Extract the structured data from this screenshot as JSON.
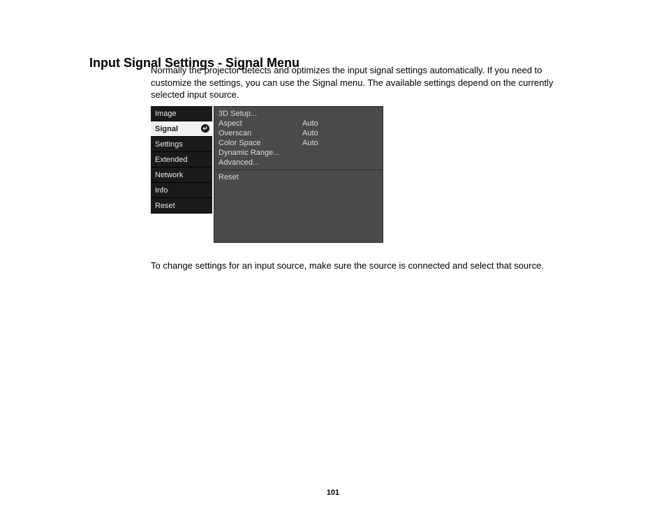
{
  "heading": "Input Signal Settings - Signal Menu",
  "intro": "Normally the projector detects and optimizes the input signal settings automatically. If you need to customize the settings, you can use the Signal menu. The available settings depend on the currently selected input source.",
  "note": "To change settings for an input source, make sure the source is connected and select that source.",
  "page_number": "101",
  "sidebar": {
    "items": [
      {
        "label": "Image",
        "selected": false
      },
      {
        "label": "Signal",
        "selected": true
      },
      {
        "label": "Settings",
        "selected": false
      },
      {
        "label": "Extended",
        "selected": false
      },
      {
        "label": "Network",
        "selected": false
      },
      {
        "label": "Info",
        "selected": false
      },
      {
        "label": "Reset",
        "selected": false
      }
    ],
    "bg_color": "#1a1a1a",
    "text_color": "#e8e8e8",
    "selected_bg": "#f0f0f0",
    "selected_text": "#1a1a1a",
    "font_size": 11
  },
  "panel": {
    "bg_color": "#4a4a4a",
    "text_color": "#dcdcdc",
    "font_size": 11,
    "rows": [
      {
        "label": "3D Setup...",
        "value": ""
      },
      {
        "label": "Aspect",
        "value": "Auto"
      },
      {
        "label": "Overscan",
        "value": "Auto"
      },
      {
        "label": "Color Space",
        "value": "Auto"
      },
      {
        "label": "Dynamic Range...",
        "value": ""
      },
      {
        "label": "Advanced...",
        "value": ""
      }
    ],
    "reset_label": "Reset"
  },
  "colors": {
    "page_bg": "#ffffff",
    "text": "#000000"
  }
}
